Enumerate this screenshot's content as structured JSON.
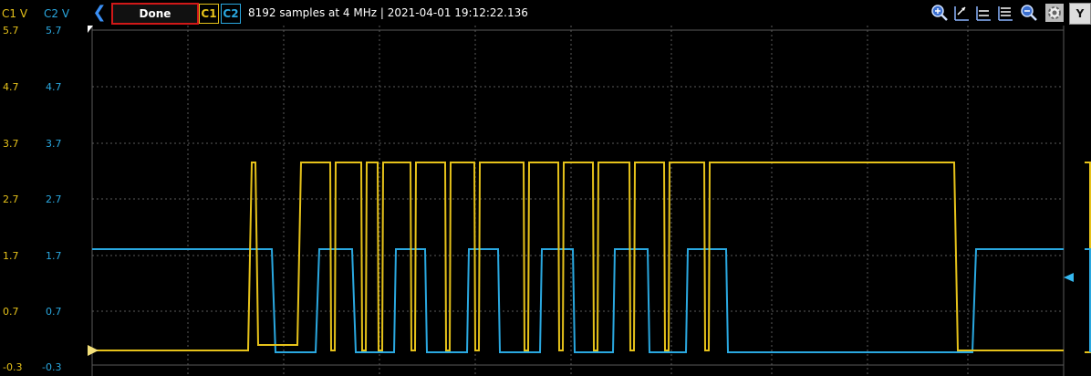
{
  "axes": {
    "c1_header": "C1 V",
    "c2_header": "C2 V",
    "c1_labels": [
      "5.7",
      "4.7",
      "3.7",
      "2.7",
      "1.7",
      "0.7",
      "-0.3"
    ],
    "c2_labels": [
      "5.7",
      "4.7",
      "3.7",
      "2.7",
      "1.7",
      "0.7",
      "-0.3"
    ]
  },
  "toolbar": {
    "back_icon": "chevron-left-icon",
    "status_button": "Done",
    "c1_button": "C1",
    "c2_button": "C2",
    "info": "8192 samples at 4 MHz | 2021-04-01 19:12:22.136",
    "tools": [
      "zoom-in-icon",
      "cursor-up-icon",
      "cursor-mid-icon",
      "cursor-down-icon",
      "zoom-out-icon",
      "settings-icon"
    ],
    "y_button": "Y"
  },
  "colors": {
    "c1": "#e6c21a",
    "c2": "#2aa8e0",
    "grid": "#5a5a5a",
    "status_border": "#d01818"
  }
}
